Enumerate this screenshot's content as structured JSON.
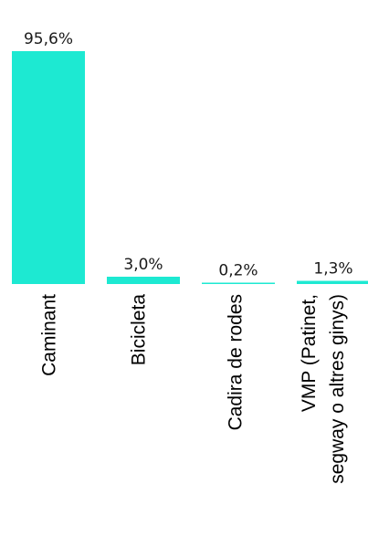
{
  "chart_data": {
    "type": "bar",
    "categories": [
      [
        "Caminant"
      ],
      [
        "Bicicleta"
      ],
      [
        "Cadira de rodes"
      ],
      [
        "VMP (Patinet,",
        "segway o altres ginys)"
      ]
    ],
    "values": [
      95.6,
      3.0,
      0.2,
      1.3
    ],
    "value_labels": [
      "95,6%",
      "3,0%",
      "0,2%",
      "1,3%"
    ],
    "title": "",
    "xlabel": "",
    "ylabel": "",
    "ylim": [
      0,
      95.6
    ],
    "grid": false,
    "legend": "none",
    "bar_color": "#1de9d2"
  }
}
